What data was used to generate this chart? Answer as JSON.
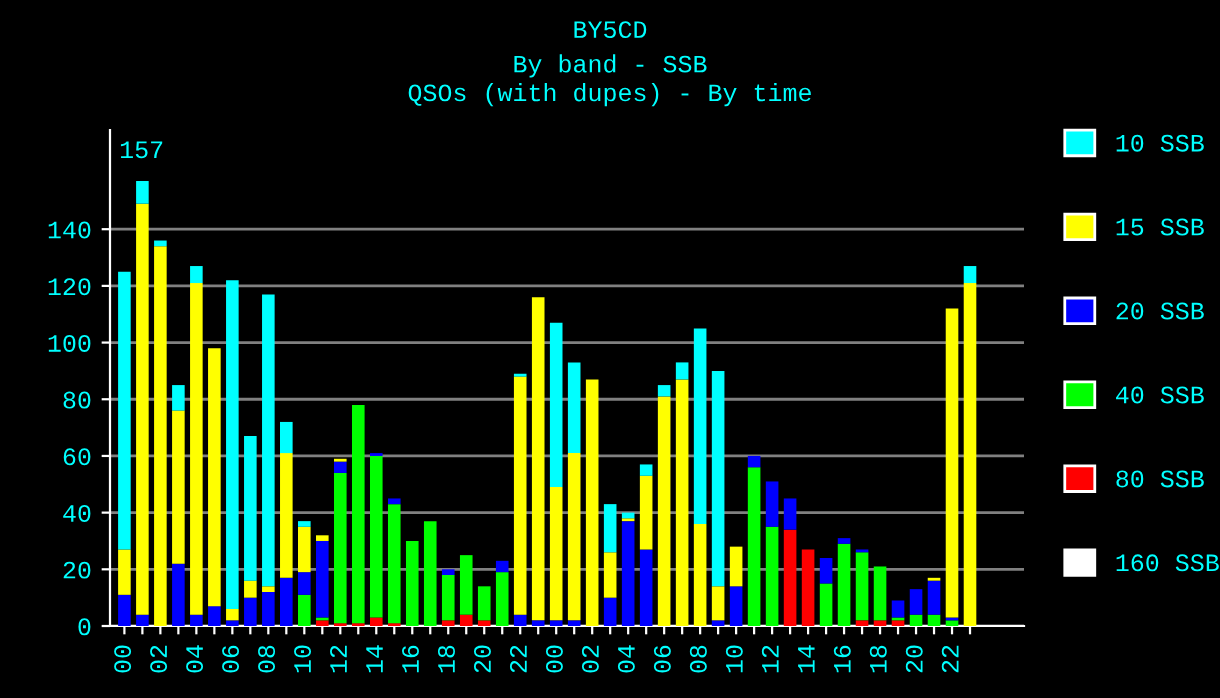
{
  "chart_data": {
    "type": "bar",
    "stacked": true,
    "title": "BY5CD",
    "subtitle": "By band - SSB\nQSOs (with dupes) - By time",
    "annotations": [
      "157"
    ],
    "categories": [
      "00",
      null,
      "02",
      null,
      "04",
      null,
      "06",
      null,
      "08",
      null,
      "10",
      null,
      "12",
      null,
      "14",
      null,
      "16",
      null,
      "18",
      null,
      "20",
      null,
      "22",
      null,
      "00",
      null,
      "02",
      null,
      "04",
      null,
      "06",
      null,
      "08",
      null,
      "10",
      null,
      "12",
      null,
      "14",
      null,
      "16",
      null,
      "18",
      null,
      "20",
      null,
      "22",
      null
    ],
    "series": [
      {
        "name": "160 SSB",
        "color": "#ffffff",
        "values": [
          0,
          0,
          0,
          0,
          0,
          0,
          0,
          0,
          0,
          0,
          0,
          0,
          0,
          0,
          0,
          0,
          0,
          0,
          0,
          0,
          0,
          0,
          0,
          0,
          0,
          0,
          0,
          0,
          0,
          0,
          0,
          0,
          0,
          0,
          0,
          0,
          0,
          0,
          0,
          0,
          0,
          0,
          0,
          0,
          0,
          0,
          0,
          0
        ]
      },
      {
        "name": "80 SSB",
        "color": "#ff0000",
        "values": [
          0,
          0,
          0,
          0,
          0,
          0,
          0,
          0,
          0,
          0,
          0,
          2,
          1,
          1,
          3,
          1,
          0,
          0,
          2,
          4,
          2,
          0,
          0,
          0,
          0,
          0,
          0,
          0,
          0,
          0,
          0,
          0,
          0,
          0,
          0,
          0,
          0,
          34,
          27,
          0,
          0,
          2,
          2,
          2,
          0,
          0,
          0,
          0
        ]
      },
      {
        "name": "40 SSB",
        "color": "#00ff00",
        "values": [
          0,
          0,
          0,
          0,
          0,
          0,
          0,
          0,
          0,
          0,
          11,
          1,
          53,
          77,
          57,
          42,
          30,
          37,
          16,
          21,
          12,
          19,
          0,
          0,
          0,
          0,
          0,
          0,
          0,
          0,
          0,
          0,
          0,
          0,
          0,
          56,
          35,
          0,
          0,
          15,
          29,
          24,
          19,
          1,
          4,
          4,
          2,
          0
        ]
      },
      {
        "name": "20 SSB",
        "color": "#0000ff",
        "values": [
          11,
          4,
          0,
          22,
          4,
          7,
          2,
          10,
          12,
          17,
          8,
          27,
          4,
          0,
          1,
          2,
          0,
          0,
          2,
          0,
          0,
          4,
          4,
          2,
          2,
          2,
          0,
          10,
          37,
          27,
          0,
          0,
          0,
          2,
          14,
          4,
          16,
          11,
          0,
          9,
          2,
          1,
          0,
          6,
          9,
          12,
          1,
          0
        ]
      },
      {
        "name": "15 SSB",
        "color": "#ffff00",
        "values": [
          16,
          145,
          134,
          54,
          117,
          91,
          4,
          6,
          2,
          44,
          16,
          2,
          1,
          0,
          0,
          0,
          0,
          0,
          0,
          0,
          0,
          0,
          84,
          114,
          47,
          59,
          87,
          16,
          1,
          26,
          81,
          87,
          36,
          12,
          14,
          0,
          0,
          0,
          0,
          0,
          0,
          0,
          0,
          0,
          0,
          1,
          109,
          121
        ]
      },
      {
        "name": "10 SSB",
        "color": "#00ffff",
        "values": [
          98,
          8,
          2,
          9,
          6,
          0,
          116,
          51,
          103,
          11,
          2,
          0,
          0,
          0,
          0,
          0,
          0,
          0,
          0,
          0,
          0,
          0,
          1,
          0,
          58,
          32,
          0,
          17,
          2,
          4,
          4,
          6,
          69,
          76,
          0,
          0,
          0,
          0,
          0,
          0,
          0,
          0,
          0,
          0,
          0,
          0,
          0,
          6
        ]
      }
    ],
    "ylim": [
      0,
      175
    ],
    "yticks": [
      0,
      20,
      40,
      60,
      80,
      100,
      120,
      140
    ],
    "grid": "y",
    "legend": "right"
  }
}
